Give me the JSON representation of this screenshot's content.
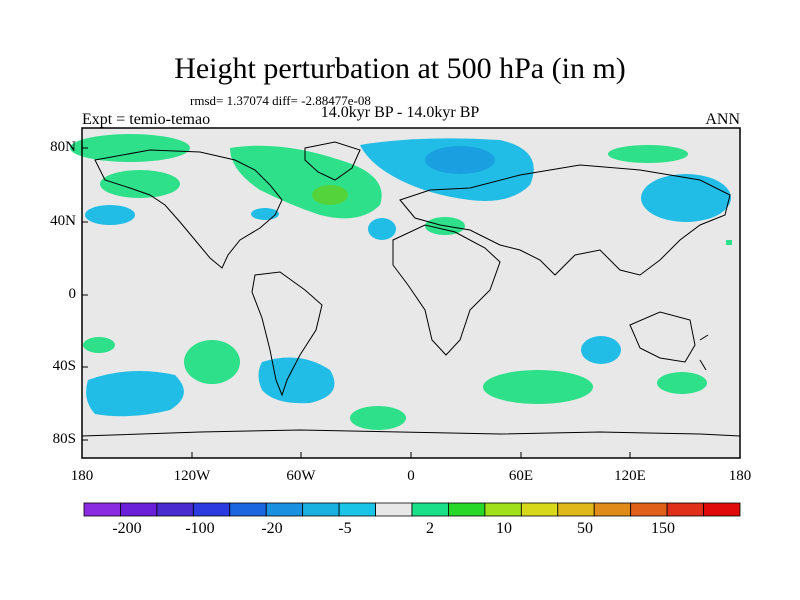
{
  "title": "Height perturbation at 500 hPa (in m)",
  "stats": "rmsd= 1.37074 diff= -2.88477e-08",
  "subtitle": "14.0kyr BP - 14.0kyr BP",
  "experiment": "Expt = temio-temao",
  "season": "ANN",
  "y_ticks": [
    "80N",
    "40N",
    "0",
    "40S",
    "80S"
  ],
  "x_ticks": [
    "180",
    "120W",
    "60W",
    "0",
    "60E",
    "120E",
    "180"
  ],
  "colorbar": {
    "colors": [
      "#8a2be2",
      "#6a1fd8",
      "#4a2bd0",
      "#2b3be0",
      "#1a66e0",
      "#1a90e0",
      "#1ab0e0",
      "#1ac4e6",
      "#e8e8e8",
      "#1ae08a",
      "#28d828",
      "#a0e01a",
      "#d8d81a",
      "#e0b81a",
      "#e08a1a",
      "#e0601a",
      "#e0301a",
      "#e00a0a"
    ],
    "labels": [
      "-200",
      "-100",
      "-20",
      "-5",
      "2",
      "10",
      "50",
      "150"
    ]
  },
  "colors": {
    "background": "#e8e8e8",
    "positive": "#2ee08a",
    "strong_positive": "#55d33a",
    "negative": "#22bde6",
    "strong_negative": "#1aa0e0"
  }
}
